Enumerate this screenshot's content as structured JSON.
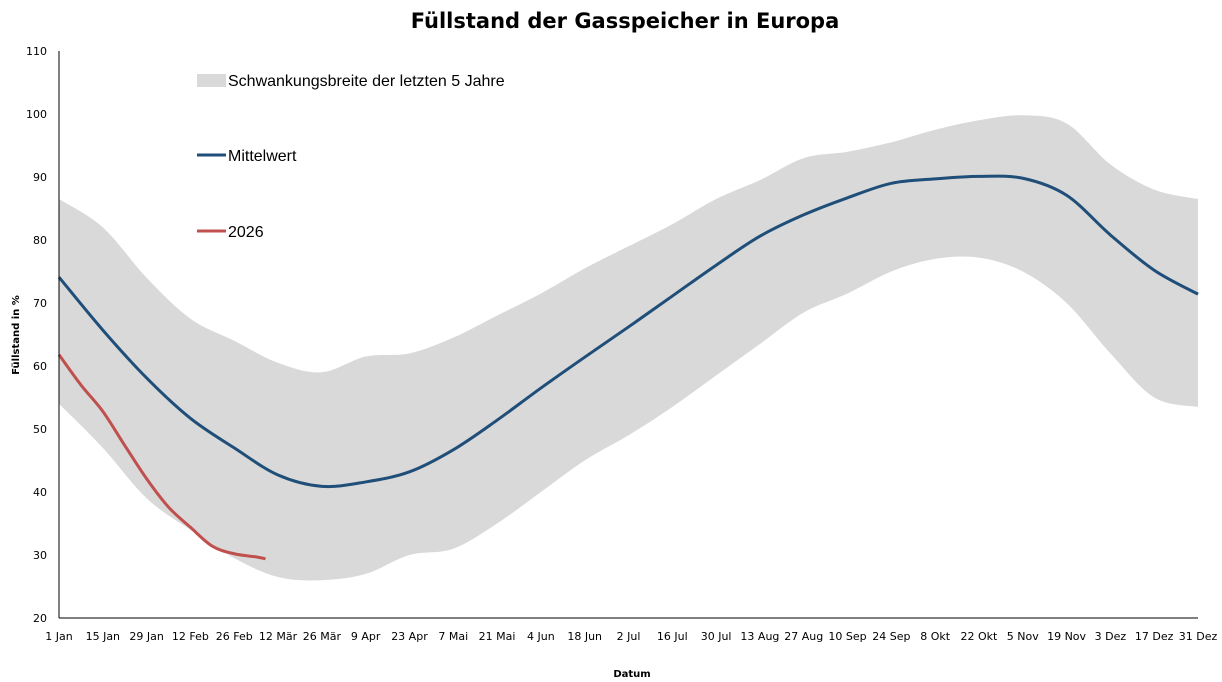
{
  "chart_data": {
    "type": "line",
    "title": "Füllstand der Gasspeicher in Europa",
    "xlabel": "Datum",
    "ylabel": "Füllstand in %",
    "ylim": [
      20,
      110
    ],
    "yticks": [
      20,
      30,
      40,
      50,
      60,
      70,
      80,
      90,
      100,
      110
    ],
    "xticks": [
      "1 Jan",
      "15 Jan",
      "29 Jan",
      "12 Feb",
      "26 Feb",
      "12 Mär",
      "26 Mär",
      "9 Apr",
      "23 Apr",
      "7 Mai",
      "21 Mai",
      "4 Jun",
      "18 Jun",
      "2 Jul",
      "16 Jul",
      "30 Jul",
      "13 Aug",
      "27 Aug",
      "10 Sep",
      "24 Sep",
      "8 Okt",
      "22 Okt",
      "5 Nov",
      "19 Nov",
      "3 Dez",
      "17 Dez",
      "31 Dez"
    ],
    "grid": false,
    "legend_placement": "top-left",
    "band": {
      "name": "Schwankungsbreite der letzten 5 Jahre",
      "color": "#d9d9d9",
      "x": [
        "1 Jan",
        "15 Jan",
        "29 Jan",
        "12 Feb",
        "26 Feb",
        "12 Mär",
        "26 Mär",
        "9 Apr",
        "23 Apr",
        "7 Mai",
        "21 Mai",
        "4 Jun",
        "18 Jun",
        "2 Jul",
        "16 Jul",
        "30 Jul",
        "13 Aug",
        "27 Aug",
        "10 Sep",
        "24 Sep",
        "8 Okt",
        "22 Okt",
        "5 Nov",
        "19 Nov",
        "3 Dez",
        "17 Dez",
        "31 Dez"
      ],
      "upper": [
        86.5,
        82,
        74,
        67.5,
        64,
        60.5,
        59,
        61.5,
        62,
        64.5,
        68,
        71.5,
        75.5,
        79,
        82.5,
        86.5,
        89.5,
        93,
        94,
        95.5,
        97.5,
        99,
        99.8,
        98.5,
        92,
        88,
        86.5
      ],
      "lower": [
        54,
        47,
        39,
        34,
        29.5,
        26.5,
        26,
        27,
        30,
        31,
        35,
        40,
        45,
        49,
        53.5,
        58.5,
        63.5,
        68.5,
        71.5,
        75,
        77,
        77.2,
        75,
        70,
        62,
        55,
        53.5
      ]
    },
    "series": [
      {
        "name": "Mittelwert",
        "color": "#1f4e79",
        "x": [
          "1 Jan",
          "15 Jan",
          "29 Jan",
          "12 Feb",
          "26 Feb",
          "12 Mär",
          "26 Mär",
          "9 Apr",
          "23 Apr",
          "7 Mai",
          "21 Mai",
          "4 Jun",
          "18 Jun",
          "2 Jul",
          "16 Jul",
          "30 Jul",
          "13 Aug",
          "27 Aug",
          "10 Sep",
          "24 Sep",
          "8 Okt",
          "22 Okt",
          "5 Nov",
          "19 Nov",
          "3 Dez",
          "17 Dez",
          "31 Dez"
        ],
        "values": [
          74.1,
          65.7,
          58.1,
          51.7,
          47.0,
          42.7,
          40.9,
          41.6,
          43.2,
          46.7,
          51.4,
          56.5,
          61.4,
          66.2,
          71.1,
          76.0,
          80.6,
          84.0,
          86.7,
          89.0,
          89.7,
          90.1,
          89.8,
          87.1,
          80.8,
          75.2,
          71.4
        ]
      },
      {
        "name": "2026",
        "color": "#c0504d",
        "x": [
          "1 Jan",
          "8 Jan",
          "15 Jan",
          "22 Jan",
          "29 Jan",
          "5 Feb",
          "12 Feb",
          "19 Feb",
          "26 Feb",
          "5 Mär",
          "8 Mär"
        ],
        "values": [
          61.8,
          57.0,
          52.8,
          47.4,
          42.1,
          37.6,
          34.4,
          31.4,
          30.2,
          29.7,
          29.4
        ]
      }
    ]
  }
}
